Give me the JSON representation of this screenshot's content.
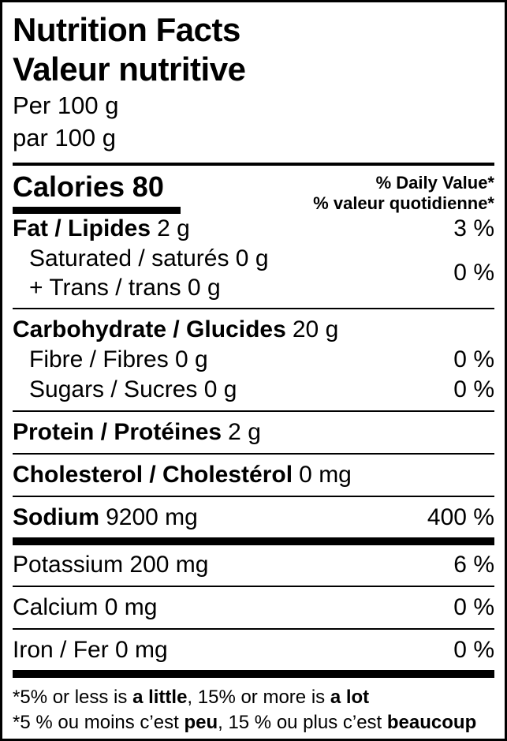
{
  "label": {
    "colors": {
      "ink": "#000000",
      "paper": "#ffffff"
    },
    "title_en": "Nutrition Facts",
    "title_fr": "Valeur nutritive",
    "serving_en": "Per 100 g",
    "serving_fr": "par 100 g",
    "calories": {
      "label": "Calories",
      "value": "80"
    },
    "dv_header_en": "% Daily Value*",
    "dv_header_fr": "% valeur quotidienne*",
    "rows": [
      {
        "name": "Fat / Lipides",
        "amount": "2 g",
        "dv": "3 %"
      },
      {
        "line1": "Saturated / saturés 0 g",
        "line2": "+ Trans / trans 0 g",
        "dv": "0 %"
      },
      {
        "name": "Carbohydrate / Glucides",
        "amount": "20 g",
        "dv": ""
      },
      {
        "name": "Fibre / Fibres 0 g",
        "dv": "0 %"
      },
      {
        "name": "Sugars / Sucres 0 g",
        "dv": "0 %"
      },
      {
        "name": "Protein / Protéines",
        "amount": "2 g",
        "dv": ""
      },
      {
        "name": "Cholesterol / Cholestérol",
        "amount": "0 mg",
        "dv": ""
      },
      {
        "name": "Sodium",
        "amount": "9200 mg",
        "dv": "400 %"
      },
      {
        "name": "Potassium 200 mg",
        "dv": "6 %"
      },
      {
        "name": "Calcium 0 mg",
        "dv": "0 %"
      },
      {
        "name": "Iron / Fer 0 mg",
        "dv": "0 %"
      }
    ],
    "footnote_en": {
      "pre": "*5% or less is ",
      "bold1": "a little",
      "mid": ", 15% or more is ",
      "bold2": "a lot"
    },
    "footnote_fr": {
      "pre": "*5 % ou moins c’est ",
      "bold1": "peu",
      "mid": ", 15 % ou plus c’est ",
      "bold2": "beaucoup"
    }
  }
}
